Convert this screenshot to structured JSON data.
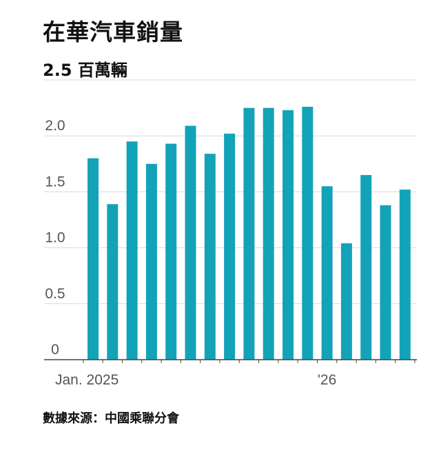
{
  "title": "在華汽車銷量",
  "source": "數據來源：中國乘聯分會",
  "colors": {
    "bar": "#13a3b8",
    "grid": "#d9d9d9",
    "axis": "#444444"
  },
  "chart_data": {
    "type": "bar",
    "title": "在華汽車銷量",
    "unit": "百萬輛",
    "categories": [
      "2025-01",
      "2025-02",
      "2025-03",
      "2025-04",
      "2025-05",
      "2025-06",
      "2025-07",
      "2025-08",
      "2025-09",
      "2025-10",
      "2025-11",
      "2025-12",
      "2026-01",
      "2026-02",
      "2026-03",
      "2026-04",
      "2026-05"
    ],
    "values": [
      1.8,
      1.39,
      1.95,
      1.75,
      1.93,
      2.09,
      1.84,
      2.02,
      2.25,
      2.25,
      2.23,
      2.26,
      1.55,
      1.04,
      1.65,
      1.38,
      1.52
    ],
    "ylim": [
      0,
      2.5
    ],
    "yticks": [
      "0",
      "0.5",
      "1.0",
      "1.5",
      "2.0",
      "2.5"
    ],
    "ytop_label": "2.5 百萬輛",
    "xtick_labels": [
      {
        "index": 0,
        "label": "Jan. 2025"
      },
      {
        "index": 12,
        "label": "'26"
      }
    ],
    "grid": true,
    "legend": "none"
  }
}
